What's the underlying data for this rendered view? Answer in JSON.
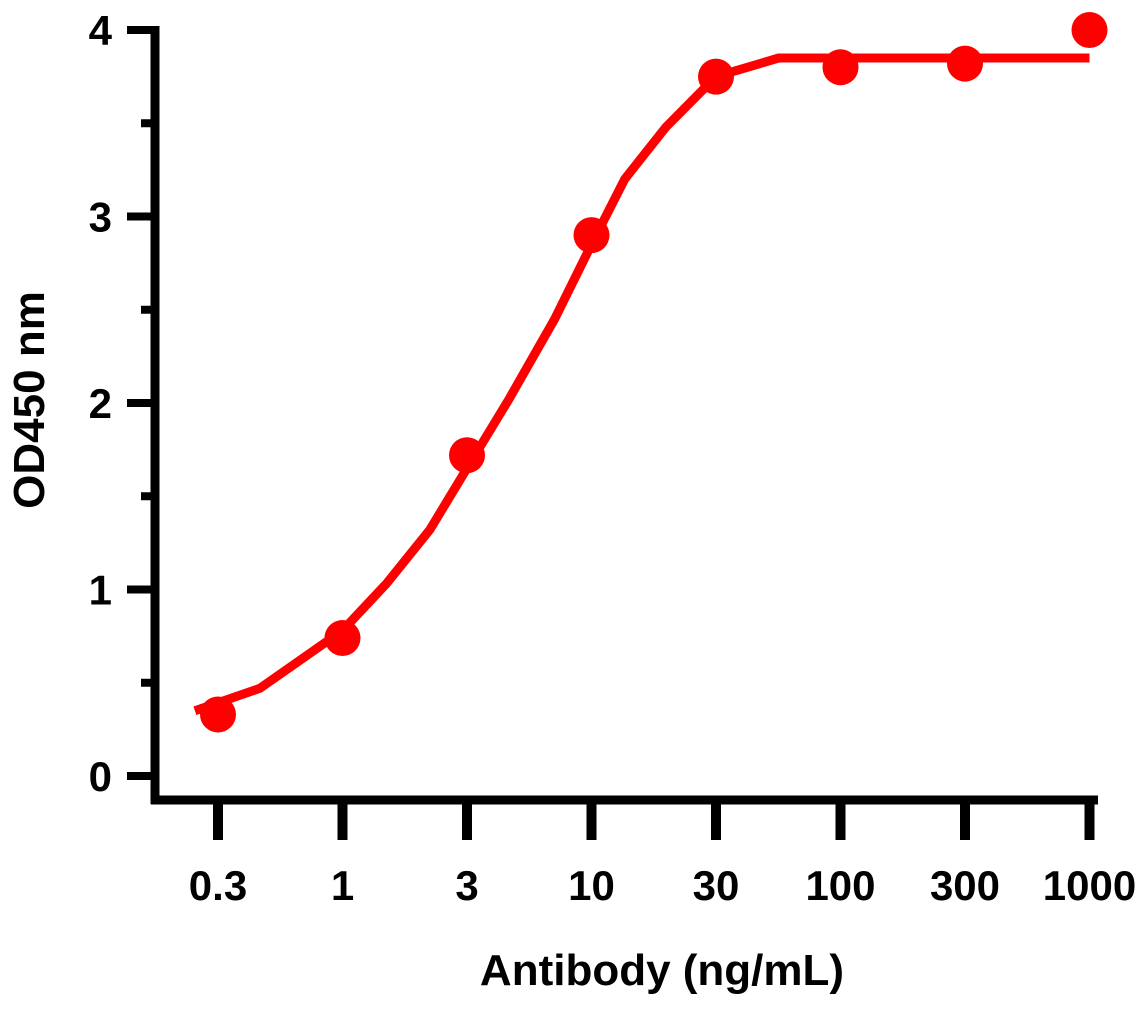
{
  "chart_data": {
    "type": "line",
    "xlabel": "Antibody (ng/mL)",
    "ylabel": "OD450 nm",
    "x_scale": "log",
    "x_ticks": [
      0.3,
      1,
      3,
      10,
      30,
      100,
      300,
      1000
    ],
    "x_tick_labels": [
      "0.3",
      "1",
      "3",
      "10",
      "30",
      "100",
      "300",
      "1000"
    ],
    "y_ticks": [
      0,
      1,
      2,
      3,
      4
    ],
    "y_tick_labels": [
      "0",
      "1",
      "2",
      "3",
      "4"
    ],
    "ylim": [
      0,
      4
    ],
    "grid": false,
    "color": "#ff0000",
    "points": {
      "x": [
        0.3,
        1,
        3,
        10,
        30,
        100,
        300,
        1000
      ],
      "y": [
        0.33,
        0.74,
        1.72,
        2.9,
        3.75,
        3.8,
        3.82,
        4.0
      ]
    },
    "fit_curve": {
      "x": [
        0.24,
        0.45,
        1,
        1.47,
        2.16,
        3,
        4.5,
        7,
        10,
        13.4,
        19.3,
        30,
        55,
        1000
      ],
      "y": [
        0.35,
        0.47,
        0.78,
        1.03,
        1.32,
        1.65,
        2.02,
        2.45,
        2.85,
        3.2,
        3.48,
        3.75,
        3.85,
        3.85
      ]
    }
  }
}
